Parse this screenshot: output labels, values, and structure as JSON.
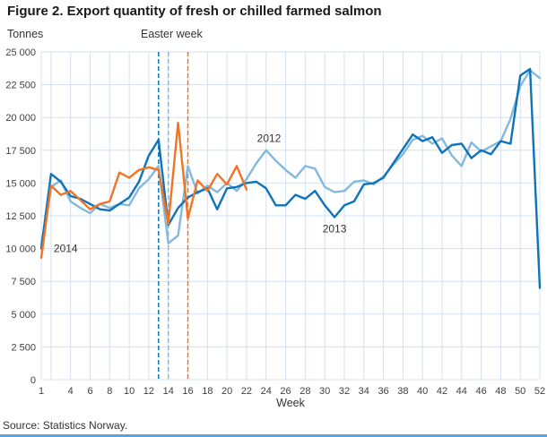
{
  "title": "Figure 2. Export quantity of fresh or chilled farmed salmon",
  "source": "Source: Statistics Norway.",
  "accent_bar_color": "#5aa2d8",
  "labels": {
    "easter_week": "Easter week"
  },
  "chart_data": {
    "type": "line",
    "title": "Figure 2. Export quantity of fresh or chilled farmed salmon",
    "ylabel": "Tonnes",
    "xlabel": "Week",
    "ylim": [
      0,
      25000
    ],
    "ytick_step": 2500,
    "xlim": [
      1,
      52
    ],
    "grid": true,
    "grid_color": "#d3e1f0",
    "legend_position": "inline-labels",
    "ytick_labels": [
      "0",
      "2 500",
      "5 000",
      "7 500",
      "10 000",
      "12 500",
      "15 000",
      "17 500",
      "20 000",
      "22 500",
      "25 000"
    ],
    "xtick_labels": [
      "1",
      "4",
      "6",
      "8",
      "10",
      "12",
      "14",
      "16",
      "18",
      "20",
      "22",
      "24",
      "26",
      "28",
      "30",
      "32",
      "34",
      "36",
      "38",
      "40",
      "42",
      "44",
      "46",
      "48",
      "50",
      "52"
    ],
    "easter_lines": [
      {
        "year": "2013",
        "week": 13,
        "color": "#0e73b8"
      },
      {
        "year": "2012",
        "week": 14,
        "color": "#83b9dd"
      },
      {
        "year": "2014",
        "week": 16,
        "color": "#f07423"
      }
    ],
    "series": [
      {
        "name": "2012",
        "color": "#83b9dd",
        "values": [
          10300,
          14700,
          15200,
          13600,
          13100,
          12700,
          13400,
          13100,
          13400,
          13300,
          14600,
          15300,
          16300,
          10400,
          11000,
          16300,
          14200,
          14800,
          14300,
          15000,
          14400,
          15300,
          16500,
          17500,
          16700,
          16000,
          15400,
          16300,
          16100,
          14700,
          14300,
          14400,
          15100,
          15200,
          14900,
          15500,
          16400,
          17200,
          18300,
          18600,
          18000,
          18400,
          17100,
          16300,
          18100,
          17400,
          17800,
          18200,
          19900,
          22400,
          23600,
          23000
        ]
      },
      {
        "name": "2013",
        "color": "#0e73b8",
        "values": [
          10000,
          15700,
          15100,
          14000,
          13800,
          13400,
          13000,
          12900,
          13400,
          13900,
          15100,
          17100,
          18300,
          11800,
          13100,
          13900,
          14300,
          14600,
          13000,
          14600,
          14700,
          15000,
          15100,
          14600,
          13300,
          13300,
          14100,
          13800,
          14400,
          13300,
          12400,
          13300,
          13600,
          14900,
          15000,
          15400,
          16500,
          17600,
          18700,
          18200,
          18500,
          17300,
          17900,
          18000,
          16900,
          17500,
          17200,
          18200,
          18000,
          23200,
          23700,
          7000
        ]
      },
      {
        "name": "2014",
        "color": "#f07423",
        "values": [
          9300,
          14800,
          14100,
          14400,
          13700,
          13000,
          13400,
          13600,
          15800,
          15400,
          16000,
          16200,
          16000,
          11900,
          19600,
          12300,
          15200,
          14400,
          15700,
          14900,
          16300,
          14500
        ]
      }
    ],
    "annotations": [
      {
        "text": "2012",
        "week": 24.3,
        "value": 18400
      },
      {
        "text": "2013",
        "week": 31.0,
        "value": 11500
      },
      {
        "text": "2014",
        "week": 3.5,
        "value": 10000
      }
    ]
  }
}
